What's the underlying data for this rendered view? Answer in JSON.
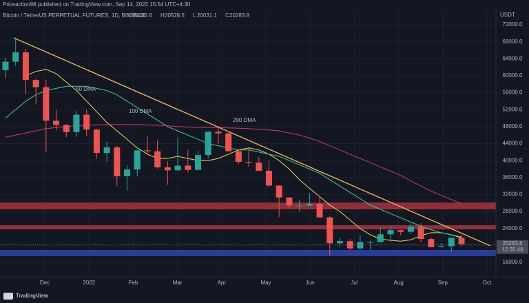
{
  "header": {
    "publisher": "Priceaction98 published on TradingView.com, Sep 14, 2022 15:54 UTC+4:30",
    "symbol": "Bitcoin / TetherUS PERPETUAL FUTURES, 1D, BINANCE",
    "ohlc": [
      {
        "label": "O",
        "value": 20162.6
      },
      {
        "label": "H",
        "value": 20528.5
      },
      {
        "label": "L",
        "value": 20031.1
      },
      {
        "label": "C",
        "value": 20283.8
      }
    ]
  },
  "footer": {
    "brand": "TradingView"
  },
  "chart_data": {
    "type": "candlestick",
    "currency": "USDT",
    "up_color": "#26a69a",
    "down_color": "#ef5350",
    "categories": [
      null,
      null,
      null,
      null,
      null,
      null,
      null,
      null,
      null,
      null,
      null,
      null,
      null,
      null,
      null,
      null,
      null,
      null,
      null,
      null,
      null,
      null,
      null,
      null,
      null,
      null,
      null,
      null,
      null,
      null,
      null,
      null,
      null,
      null,
      null,
      null,
      null,
      null,
      null,
      null,
      null,
      null,
      null,
      null,
      null,
      null
    ],
    "open": [
      61300,
      63300,
      65500,
      59000,
      57300,
      49400,
      48400,
      46700,
      50800,
      47300,
      41800,
      43100,
      36300,
      37900,
      42400,
      42200,
      38400,
      37700,
      38800,
      37800,
      41300,
      46800,
      46400,
      42200,
      39700,
      39500,
      37600,
      34100,
      31300,
      29400,
      29400,
      29800,
      26600,
      20500,
      21000,
      19300,
      20800,
      20800,
      22600,
      23600,
      23200,
      24400,
      21500,
      19600,
      19800,
      21800
    ],
    "high": [
      64300,
      69000,
      66300,
      59300,
      59100,
      51900,
      48600,
      51800,
      52000,
      47500,
      44400,
      43400,
      38900,
      42600,
      45800,
      44700,
      39800,
      45400,
      42500,
      42300,
      46900,
      48200,
      47000,
      42400,
      42900,
      40800,
      40000,
      34200,
      31300,
      30700,
      32300,
      31600,
      26900,
      21900,
      21500,
      22500,
      21100,
      24200,
      24600,
      23700,
      25200,
      25200,
      21900,
      20500,
      21800,
      22500
    ],
    "low": [
      59400,
      62300,
      55600,
      53300,
      42000,
      47100,
      45500,
      45600,
      45700,
      40500,
      39600,
      34000,
      32900,
      36300,
      41700,
      38100,
      34300,
      37500,
      37200,
      37600,
      40500,
      44000,
      42100,
      39200,
      38500,
      37600,
      33700,
      26700,
      28700,
      28000,
      29300,
      26600,
      17600,
      19700,
      18900,
      19100,
      19000,
      20700,
      20700,
      22400,
      22800,
      20800,
      19500,
      19500,
      18500,
      19900
    ],
    "close": [
      63300,
      65500,
      59000,
      57300,
      49400,
      48400,
      46700,
      50800,
      47300,
      41800,
      43100,
      36300,
      37900,
      42400,
      42200,
      38400,
      37700,
      38800,
      37800,
      41300,
      46800,
      46400,
      42200,
      39700,
      39500,
      37600,
      34100,
      31300,
      29400,
      29400,
      29800,
      26600,
      20500,
      21000,
      19300,
      20800,
      20800,
      22600,
      23600,
      23200,
      24400,
      21500,
      19600,
      19800,
      21800,
      20283.8
    ],
    "last_price": 20283.8,
    "countdown": "12:35:48",
    "overlays": [
      {
        "name": "50 DMA",
        "color": "#f2d45c",
        "values": [
          null,
          null,
          60000,
          61000,
          61500,
          60500,
          58500,
          56500,
          54000,
          51500,
          49000,
          47000,
          45000,
          43000,
          41500,
          40500,
          40500,
          41000,
          40500,
          40000,
          40000,
          40500,
          41500,
          42500,
          43000,
          42500,
          41500,
          40000,
          38000,
          35500,
          33500,
          31500,
          29500,
          28000,
          26000,
          24000,
          22500,
          21500,
          21200,
          21000,
          21300,
          22300,
          23000,
          23000,
          22500,
          21800
        ]
      },
      {
        "name": "100 DMA",
        "color": "#3fce8c",
        "values": [
          50000,
          52000,
          54000,
          55500,
          56500,
          57000,
          57500,
          57500,
          57500,
          57000,
          56500,
          55500,
          54000,
          52500,
          51000,
          49500,
          48000,
          47000,
          46000,
          45000,
          44000,
          43500,
          43000,
          42500,
          42500,
          42000,
          41500,
          41000,
          40000,
          39000,
          38000,
          37000,
          35500,
          34000,
          32500,
          31000,
          29500,
          28500,
          27500,
          26500,
          25500,
          24500,
          23700,
          23000,
          22500,
          22000
        ]
      },
      {
        "name": "200 DMA",
        "color": "#d6336c",
        "values": [
          45500,
          46000,
          46500,
          47000,
          47500,
          47800,
          48000,
          48200,
          48300,
          48400,
          48500,
          48500,
          48500,
          48500,
          48400,
          48300,
          48200,
          48000,
          47900,
          47800,
          47800,
          47800,
          47700,
          47600,
          47500,
          47400,
          47200,
          47000,
          46500,
          46000,
          45300,
          44500,
          43500,
          42500,
          41500,
          40500,
          39500,
          38500,
          37500,
          36500,
          35200,
          34000,
          32800,
          31800,
          30800,
          29800
        ]
      }
    ],
    "zones": [
      {
        "color": "#a8323e",
        "low": 28500,
        "high": 30100
      },
      {
        "color": "#a8323e",
        "low": 23780,
        "high": 24760
      },
      {
        "color": "#2c43b0",
        "low": 17460,
        "high": 18920
      }
    ],
    "x_labels": [
      "Dec",
      "2022",
      "Feb",
      "Mar",
      "Apr",
      "May",
      "Jun",
      "Jul",
      "Aug",
      "Sep",
      "Oct"
    ],
    "ylim": [
      13240,
      74600
    ],
    "yticks": [
      {
        "value": 16000,
        "label": "16000.0"
      },
      {
        "value": 20000,
        "label": "20000.0"
      },
      {
        "value": 24000,
        "label": "24000.0"
      },
      {
        "value": 28000,
        "label": "28000.0"
      },
      {
        "value": 32000,
        "label": "32000.0"
      },
      {
        "value": 36000,
        "label": "36000.0"
      },
      {
        "value": 40000,
        "label": "40000.0"
      },
      {
        "value": 44000,
        "label": "44000.0"
      },
      {
        "value": 48000,
        "label": "48000.0"
      },
      {
        "value": 52000,
        "label": "52000.0"
      },
      {
        "value": 56000,
        "label": "56000.0"
      },
      {
        "value": 60000,
        "label": "60000.0"
      },
      {
        "value": 64000,
        "label": "64000.0"
      },
      {
        "value": 68000,
        "label": "68000.0"
      },
      {
        "value": 72000,
        "label": "72000.0"
      }
    ],
    "grid": true
  }
}
